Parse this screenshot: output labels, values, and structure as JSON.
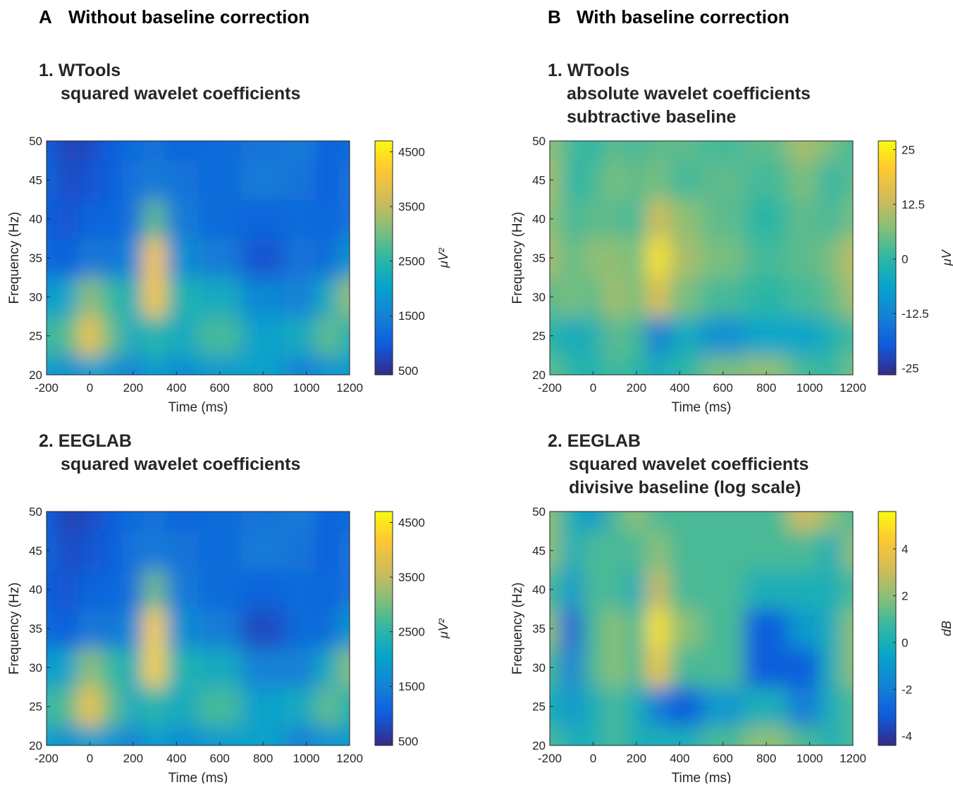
{
  "headers": [
    {
      "letter": "A",
      "text": "Without baseline correction"
    },
    {
      "letter": "B",
      "text": "With baseline correction"
    }
  ],
  "chart_data": [
    {
      "type": "heatmap",
      "title": [
        "1. WTools",
        "squared wavelet coefficients"
      ],
      "xlabel": "Time (ms)",
      "ylabel": "Frequency (Hz)",
      "xlim": [
        -200,
        1200
      ],
      "xticks": [
        -200,
        0,
        200,
        400,
        600,
        800,
        1000,
        1200
      ],
      "ylim": [
        20,
        50
      ],
      "yticks": [
        20,
        25,
        30,
        35,
        40,
        45,
        50
      ],
      "x": [
        -200,
        -100,
        0,
        100,
        200,
        300,
        400,
        600,
        800,
        1000,
        1100,
        1200
      ],
      "y": [
        20,
        25,
        30,
        35,
        40,
        45,
        50
      ],
      "z": [
        [
          2000,
          1700,
          2000,
          1800,
          1500,
          2000,
          1700,
          1900,
          2000,
          1500,
          1800,
          1900
        ],
        [
          2600,
          2800,
          4000,
          2900,
          2200,
          2500,
          2200,
          2700,
          2000,
          2200,
          2900,
          2400
        ],
        [
          1900,
          2100,
          3200,
          2600,
          2300,
          4200,
          2400,
          2200,
          1600,
          1500,
          2200,
          3200
        ],
        [
          1200,
          1000,
          1400,
          1300,
          1600,
          4200,
          1700,
          1400,
          900,
          1300,
          1200,
          1800
        ],
        [
          1000,
          900,
          1100,
          1100,
          1300,
          2900,
          1400,
          1200,
          1100,
          1200,
          1100,
          1300
        ],
        [
          1100,
          800,
          900,
          1000,
          1300,
          1400,
          1300,
          1200,
          1400,
          1300,
          1000,
          1300
        ],
        [
          1000,
          700,
          800,
          1000,
          1200,
          1300,
          1100,
          1200,
          1300,
          1400,
          1000,
          1200
        ]
      ],
      "clim": [
        420,
        4700
      ],
      "cticks": [
        500,
        1500,
        2500,
        3500,
        4500
      ],
      "clabel": "μV²"
    },
    {
      "type": "heatmap",
      "title": [
        "1. WTools",
        "absolute wavelet coefficients",
        "subtractive baseline"
      ],
      "xlabel": "Time (ms)",
      "ylabel": "Frequency (Hz)",
      "xlim": [
        -200,
        1200
      ],
      "xticks": [
        -200,
        0,
        200,
        400,
        600,
        800,
        1000,
        1200
      ],
      "ylim": [
        20,
        50
      ],
      "yticks": [
        20,
        25,
        30,
        35,
        40,
        45,
        50
      ],
      "x": [
        -200,
        -100,
        0,
        100,
        200,
        300,
        400,
        600,
        800,
        1000,
        1100,
        1200
      ],
      "y": [
        20,
        25,
        30,
        35,
        40,
        45,
        50
      ],
      "z": [
        [
          4,
          0,
          -2,
          2,
          0,
          -4,
          0,
          6,
          8,
          2,
          0,
          6
        ],
        [
          0,
          -4,
          -2,
          4,
          2,
          -14,
          -4,
          -10,
          -6,
          -6,
          -2,
          2
        ],
        [
          4,
          6,
          4,
          10,
          6,
          16,
          6,
          2,
          0,
          2,
          4,
          10
        ],
        [
          10,
          4,
          8,
          8,
          6,
          24,
          10,
          6,
          2,
          4,
          6,
          12
        ],
        [
          8,
          2,
          4,
          4,
          2,
          14,
          8,
          4,
          0,
          4,
          2,
          6
        ],
        [
          10,
          0,
          2,
          6,
          4,
          6,
          2,
          4,
          2,
          6,
          0,
          4
        ],
        [
          8,
          2,
          0,
          4,
          2,
          4,
          4,
          2,
          4,
          10,
          6,
          2
        ]
      ],
      "clim": [
        -26.5,
        27
      ],
      "cticks": [
        -25,
        -12.5,
        0,
        12.5,
        25
      ],
      "clabel": "μV"
    },
    {
      "type": "heatmap",
      "title": [
        "2. EEGLAB",
        "squared wavelet coefficients"
      ],
      "xlabel": "Time (ms)",
      "ylabel": "Frequency (Hz)",
      "xlim": [
        -200,
        1200
      ],
      "xticks": [
        -200,
        0,
        200,
        400,
        600,
        800,
        1000,
        1200
      ],
      "ylim": [
        20,
        50
      ],
      "yticks": [
        20,
        25,
        30,
        35,
        40,
        45,
        50
      ],
      "x": [
        -200,
        -100,
        0,
        100,
        200,
        300,
        400,
        600,
        800,
        1000,
        1100,
        1200
      ],
      "y": [
        20,
        25,
        30,
        35,
        40,
        45,
        50
      ],
      "z": [
        [
          2000,
          1700,
          2000,
          1800,
          1500,
          2000,
          1700,
          1900,
          2000,
          1500,
          1800,
          1900
        ],
        [
          2600,
          2800,
          4000,
          2900,
          2200,
          2500,
          2200,
          2700,
          2000,
          2200,
          2900,
          2400
        ],
        [
          1900,
          2100,
          3200,
          2600,
          2300,
          4300,
          2400,
          2200,
          1500,
          1500,
          2200,
          3100
        ],
        [
          1200,
          1000,
          1400,
          1300,
          1600,
          4300,
          1700,
          1400,
          800,
          1200,
          1200,
          1800
        ],
        [
          1000,
          900,
          1100,
          1100,
          1300,
          3000,
          1400,
          1200,
          1100,
          1200,
          1100,
          1300
        ],
        [
          1100,
          800,
          900,
          1000,
          1300,
          1400,
          1300,
          1200,
          1400,
          1300,
          1000,
          1300
        ],
        [
          1000,
          700,
          800,
          1000,
          1200,
          1300,
          1100,
          1200,
          1300,
          1400,
          1000,
          1200
        ]
      ],
      "clim": [
        420,
        4700
      ],
      "cticks": [
        500,
        1500,
        2500,
        3500,
        4500
      ],
      "clabel": "μV²"
    },
    {
      "type": "heatmap",
      "title": [
        "2. EEGLAB",
        "squared wavelet coefficients",
        "divisive baseline (log scale)"
      ],
      "xlabel": "Time (ms)",
      "ylabel": "Frequency (Hz)",
      "xlim": [
        -200,
        1200
      ],
      "xticks": [
        -200,
        0,
        200,
        400,
        600,
        800,
        1000,
        1200
      ],
      "ylim": [
        20,
        50
      ],
      "yticks": [
        20,
        25,
        30,
        35,
        40,
        45,
        50
      ],
      "x": [
        -200,
        -100,
        0,
        100,
        200,
        300,
        400,
        600,
        800,
        1000,
        1100,
        1200
      ],
      "y": [
        20,
        25,
        30,
        35,
        40,
        45,
        50
      ],
      "z": [
        [
          1,
          0,
          0,
          1,
          0,
          0,
          0,
          1,
          2,
          1,
          0,
          1
        ],
        [
          0,
          -1,
          0,
          1,
          0,
          -2,
          -3,
          -1,
          0,
          -2,
          0,
          1
        ],
        [
          1,
          -2,
          1,
          2,
          1,
          4,
          1,
          1,
          -3,
          -3,
          0,
          2
        ],
        [
          2,
          -3,
          1,
          2,
          1,
          5,
          2,
          1,
          -3,
          -1,
          0,
          2
        ],
        [
          1,
          -1,
          1,
          1,
          0,
          3,
          1,
          1,
          0,
          0,
          0,
          1
        ],
        [
          2,
          0,
          1,
          1,
          1,
          2,
          1,
          1,
          1,
          1,
          0,
          2
        ],
        [
          2,
          0,
          -1,
          1,
          2,
          1,
          1,
          1,
          1,
          3,
          2,
          1
        ]
      ],
      "clim": [
        -4.4,
        5.6
      ],
      "cticks": [
        -4,
        -2,
        0,
        2,
        4
      ],
      "clabel": "dB"
    }
  ]
}
